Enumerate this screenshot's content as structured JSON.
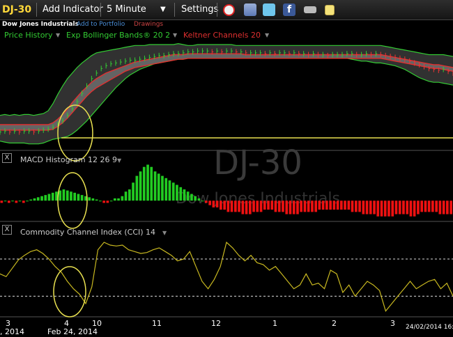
{
  "toolbar": {
    "symbol": "DJ-30",
    "add_indicator": "Add Indicator",
    "interval": "5 Minute",
    "settings": "Settings"
  },
  "subheader": {
    "name": "Dow Jones Industrials",
    "add_portfolio": "Add to Portfolio",
    "drawings": "Drawings"
  },
  "legend": {
    "price_history": "Price History",
    "bollinger": "Exp Bollinger Bands® 20 2",
    "keltner": "Keltner Channels 20"
  },
  "watermark": {
    "symbol": "DJ-30",
    "name": "Dow Jones Industrials"
  },
  "panels": {
    "macd_title": "MACD Histogram 12 26 9",
    "cci_title": "Commodity Channel Index (CCI) 14",
    "close_glyph": "X"
  },
  "xaxis": {
    "labels": [
      "3",
      "4",
      "10",
      "11",
      "12",
      "1",
      "2",
      "3"
    ],
    "date_left": ", 2014",
    "date_mid": "Feb 24, 2014",
    "date_right": "24/02/2014 16:"
  },
  "colors": {
    "symbol": "#ffd83a",
    "price_legend": "#33cc33",
    "bollinger": "#33cc33",
    "keltner": "#e03030",
    "macd_pos": "#22cc22",
    "macd_neg": "#ee1111",
    "cci_line": "#c8b820",
    "highlight": "#e8e050"
  },
  "chart_data": [
    {
      "type": "line",
      "name": "price",
      "price": [
        2,
        3,
        2,
        3,
        2,
        3,
        3,
        2,
        3,
        4,
        5,
        7,
        10,
        14,
        20,
        27,
        35,
        44,
        52,
        60,
        66,
        71,
        74,
        76,
        77,
        78,
        79,
        80,
        80,
        81,
        82,
        83,
        84,
        85,
        85,
        86,
        87,
        87,
        88,
        89,
        89,
        90,
        90,
        90,
        89,
        90,
        89,
        90,
        90,
        89,
        89,
        88,
        88,
        88,
        88,
        87,
        88,
        87,
        88,
        88,
        87,
        88,
        87,
        87,
        86,
        87,
        86,
        86,
        85,
        86,
        86,
        86,
        87,
        87,
        86,
        86,
        87,
        86,
        87,
        86,
        85,
        84,
        83,
        82,
        81,
        79,
        77,
        75,
        73,
        71,
        70,
        69,
        70,
        68,
        66
      ],
      "bb_upper": [
        20,
        21,
        20,
        21,
        20,
        21,
        21,
        20,
        21,
        22,
        25,
        33,
        43,
        52,
        60,
        66,
        72,
        77,
        81,
        85,
        88,
        89,
        90,
        91,
        92,
        93,
        94,
        95,
        96,
        96,
        96,
        97,
        97,
        97,
        97,
        97,
        97,
        98,
        97,
        96,
        96,
        97,
        97,
        97,
        97,
        97,
        97,
        97,
        97,
        96,
        96,
        96,
        96,
        96,
        96,
        96,
        96,
        96,
        96,
        96,
        96,
        96,
        96,
        96,
        96,
        96,
        96,
        96,
        96,
        96,
        96,
        96,
        96,
        96,
        96,
        96,
        96,
        96,
        96,
        96,
        95,
        94,
        93,
        92,
        91,
        90,
        89,
        88,
        87,
        86,
        86,
        86,
        86,
        85,
        84
      ],
      "bb_lower": [
        -8,
        -9,
        -10,
        -10,
        -10,
        -10,
        -11,
        -11,
        -11,
        -10,
        -8,
        -6,
        -5,
        -4,
        -3,
        0,
        4,
        9,
        14,
        20,
        26,
        32,
        38,
        44,
        50,
        55,
        60,
        64,
        67,
        70,
        72,
        74,
        76,
        77,
        78,
        79,
        80,
        81,
        81,
        82,
        82,
        82,
        82,
        82,
        82,
        82,
        82,
        82,
        82,
        82,
        82,
        82,
        82,
        82,
        82,
        82,
        82,
        82,
        82,
        82,
        82,
        82,
        82,
        82,
        82,
        82,
        82,
        82,
        82,
        82,
        82,
        82,
        82,
        81,
        80,
        79,
        79,
        78,
        77,
        77,
        76,
        75,
        74,
        72,
        70,
        67,
        64,
        61,
        59,
        57,
        56,
        56,
        55,
        54,
        53
      ],
      "kc_upper": [
        10,
        10,
        10,
        10,
        10,
        10,
        10,
        10,
        10,
        10,
        10,
        12,
        16,
        21,
        27,
        34,
        40,
        46,
        51,
        56,
        60,
        63,
        66,
        68,
        70,
        72,
        74,
        76,
        78,
        79,
        80,
        81,
        82,
        83,
        84,
        85,
        86,
        86,
        86,
        87,
        87,
        87,
        87,
        87,
        87,
        87,
        87,
        87,
        87,
        87,
        87,
        86,
        86,
        86,
        86,
        86,
        86,
        86,
        86,
        86,
        86,
        86,
        86,
        86,
        86,
        86,
        86,
        86,
        86,
        86,
        86,
        86,
        86,
        86,
        86,
        86,
        86,
        86,
        86,
        86,
        85,
        84,
        83,
        82,
        81,
        80,
        79,
        78,
        77,
        76,
        75,
        75,
        74,
        73,
        72
      ],
      "kc_lower": [
        4,
        4,
        4,
        4,
        4,
        4,
        4,
        4,
        4,
        4,
        4,
        5,
        8,
        12,
        17,
        23,
        29,
        35,
        41,
        46,
        50,
        53,
        56,
        59,
        62,
        65,
        68,
        70,
        72,
        73,
        74,
        75,
        76,
        77,
        78,
        79,
        80,
        81,
        81,
        82,
        82,
        82,
        82,
        82,
        82,
        82,
        82,
        82,
        82,
        82,
        82,
        82,
        82,
        82,
        82,
        82,
        82,
        82,
        82,
        82,
        82,
        82,
        82,
        82,
        82,
        82,
        82,
        82,
        82,
        82,
        82,
        82,
        82,
        82,
        82,
        82,
        82,
        82,
        82,
        82,
        81,
        80,
        79,
        78,
        77,
        76,
        75,
        74,
        73,
        72,
        71,
        71,
        70,
        69,
        68
      ],
      "ylim": [
        -15,
        100
      ]
    },
    {
      "type": "bar",
      "name": "macd-histogram",
      "values": [
        -1,
        0,
        -1,
        0,
        -1,
        0,
        -1,
        0,
        0.5,
        1,
        1.5,
        2,
        2.5,
        3,
        3.5,
        4,
        4.5,
        5,
        4.5,
        4,
        3.5,
        3,
        2.5,
        2,
        1.5,
        1,
        0.5,
        0,
        -1,
        -1,
        0,
        1,
        1,
        2,
        4,
        5,
        8,
        11,
        13,
        15,
        16,
        15,
        13,
        12,
        11,
        10,
        9,
        8,
        7,
        6,
        5,
        4,
        3,
        2,
        1,
        0,
        -1,
        -2,
        -3,
        -3,
        -4,
        -4,
        -5,
        -5,
        -5,
        -5,
        -6,
        -6,
        -6,
        -5,
        -5,
        -5,
        -4,
        -4,
        -4,
        -5,
        -5,
        -5,
        -6,
        -6,
        -6,
        -6,
        -5,
        -5,
        -5,
        -5,
        -5,
        -4,
        -4,
        -4,
        -4,
        -4,
        -4,
        -4,
        -4,
        -4,
        -5,
        -5,
        -5,
        -6,
        -6,
        -6,
        -6,
        -7,
        -7,
        -7,
        -7,
        -7,
        -6,
        -6,
        -6,
        -6,
        -7,
        -7,
        -6,
        -5,
        -5,
        -5,
        -5,
        -5,
        -6,
        -6,
        -6,
        -6
      ],
      "ylim": [
        -8,
        18
      ]
    },
    {
      "type": "line",
      "name": "cci",
      "values": [
        20,
        5,
        50,
        95,
        120,
        140,
        150,
        130,
        100,
        60,
        30,
        -20,
        -60,
        -90,
        -140,
        -50,
        150,
        190,
        175,
        170,
        175,
        150,
        140,
        130,
        135,
        150,
        160,
        140,
        120,
        90,
        100,
        140,
        60,
        -20,
        -60,
        -10,
        60,
        190,
        160,
        120,
        90,
        120,
        80,
        70,
        40,
        60,
        20,
        -20,
        -60,
        -40,
        20,
        -40,
        -30,
        -60,
        40,
        20,
        -80,
        -40,
        -100,
        -60,
        -20,
        -40,
        -70,
        -180,
        -140,
        -100,
        -60,
        -20,
        -60,
        -40,
        -20,
        -10,
        -60,
        -30,
        -100
      ],
      "ylim": [
        -200,
        220
      ],
      "levels": [
        100,
        -100
      ]
    }
  ]
}
